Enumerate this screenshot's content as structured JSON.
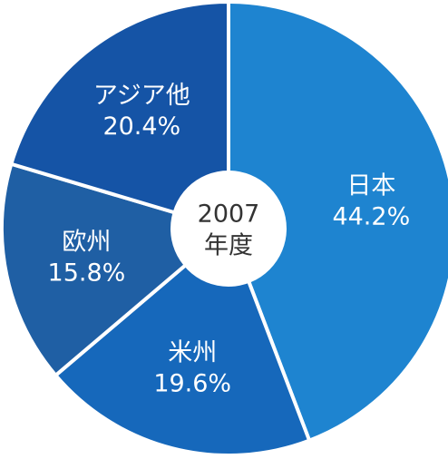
{
  "chart_data": {
    "type": "donut",
    "categories": [
      "日本",
      "米州",
      "欧州",
      "アジア他"
    ],
    "values": [
      44.2,
      19.6,
      15.8,
      20.4
    ],
    "value_labels": [
      "44.2%",
      "19.6%",
      "15.8%",
      "20.4%"
    ],
    "colors": [
      "#1e84d0",
      "#1668bb",
      "#1f5fa4",
      "#1554a6"
    ],
    "center_text": [
      "2007",
      "年度"
    ]
  }
}
